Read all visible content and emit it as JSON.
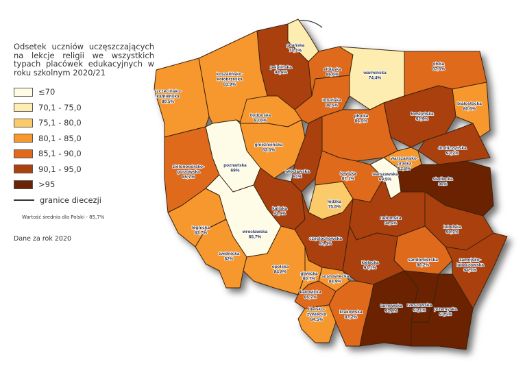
{
  "legend": {
    "title": "Odsetek uczniów uczęszczających na lekcje religii we wszystkich typach placówek edukacyjnych w roku szkolnym 2020/21",
    "classes": [
      {
        "label": "≤70",
        "color": "#FEFCE6"
      },
      {
        "label": "70,1 - 75,0",
        "color": "#FDEDB0"
      },
      {
        "label": "75,1 - 80,0",
        "color": "#FBCB6A"
      },
      {
        "label": "80,1 - 85,0",
        "color": "#F7982F"
      },
      {
        "label": "85,1 - 90,0",
        "color": "#DF6A1E"
      },
      {
        "label": "90,1 - 95,0",
        "color": "#AA410E"
      },
      {
        "label": ">95",
        "color": "#6A2306"
      }
    ],
    "border_label": "granice diecezji",
    "mean_note": "Wartość średnia dla Polski - 85,7%",
    "source_note": "Dane za rok 2020"
  },
  "dioceses": [
    {
      "name": "gdańska",
      "value": "74,1%"
    },
    {
      "name": "pelplińska",
      "value": "94,6%"
    },
    {
      "name": "koszalińsko-kołobrzeska",
      "value": "83,9%"
    },
    {
      "name": "szczecińsko-kamieńska",
      "value": "80,5%"
    },
    {
      "name": "elbląska",
      "value": "86,6%"
    },
    {
      "name": "warmińska",
      "value": "74,4%"
    },
    {
      "name": "ełcka",
      "value": "87,5%"
    },
    {
      "name": "białostocka",
      "value": "80,6%"
    },
    {
      "name": "łomżyńska",
      "value": "92,9%"
    },
    {
      "name": "drohiczyńska",
      "value": "93,7%"
    },
    {
      "name": "toruńska",
      "value": "88,5%"
    },
    {
      "name": "bydgoska",
      "value": "83,6%"
    },
    {
      "name": "płocka",
      "value": "86,5%"
    },
    {
      "name": "gnieźnieńska",
      "value": "83,5%"
    },
    {
      "name": "poznańska",
      "value": "69%"
    },
    {
      "name": "zielonogórsko-gorzowska",
      "value": "85,7%"
    },
    {
      "name": "włocławska",
      "value": "91%"
    },
    {
      "name": "łowicka",
      "value": "87,1%"
    },
    {
      "name": "warszawsko-praska",
      "value": "82,8%"
    },
    {
      "name": "warszawska",
      "value": "69,5%"
    },
    {
      "name": "siedlecka",
      "value": "96%"
    },
    {
      "name": "łódzka",
      "value": "75,6%"
    },
    {
      "name": "kaliska",
      "value": "93,6%"
    },
    {
      "name": "legnicka",
      "value": "83,7%"
    },
    {
      "name": "wrocławska",
      "value": "65,7%"
    },
    {
      "name": "radomska",
      "value": "94,6%"
    },
    {
      "name": "lubelska",
      "value": "90,7%"
    },
    {
      "name": "częstochowska",
      "value": "91,4%"
    },
    {
      "name": "świdnicka",
      "value": "82%"
    },
    {
      "name": "opolska",
      "value": "84,8%"
    },
    {
      "name": "sandomierska",
      "value": "86,2%"
    },
    {
      "name": "kielecka",
      "value": "93,1%"
    },
    {
      "name": "zamojsko-lubaczowska",
      "value": "94,7%"
    },
    {
      "name": "gliwicka",
      "value": "80,7%"
    },
    {
      "name": "sosnowiecka",
      "value": "84,9%"
    },
    {
      "name": "katowicka",
      "value": "85,7%"
    },
    {
      "name": "krakowska",
      "value": "87,2%"
    },
    {
      "name": "bielsko-żywiecka",
      "value": "84,5%"
    },
    {
      "name": "tarnowska",
      "value": "97,8%"
    },
    {
      "name": "rzeszowska",
      "value": "97,1%"
    },
    {
      "name": "przemyska",
      "value": "97,5%"
    }
  ]
}
